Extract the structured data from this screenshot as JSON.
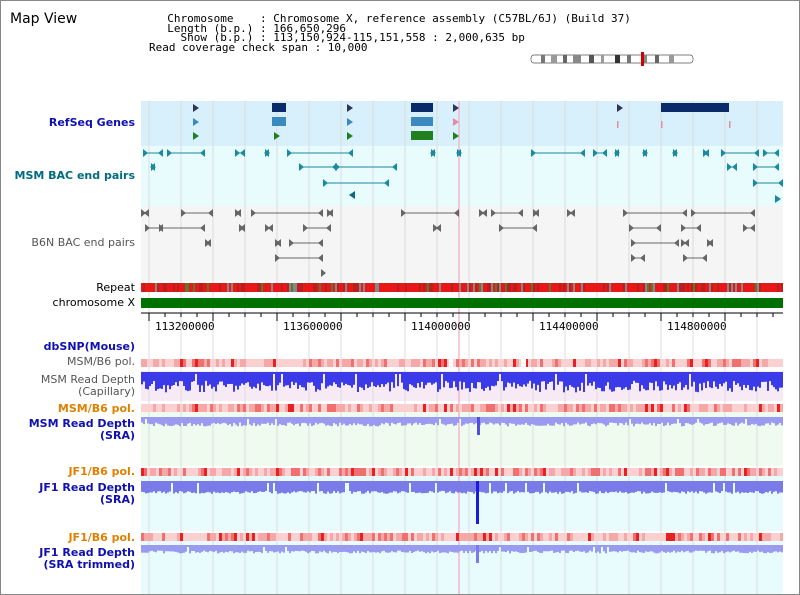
{
  "header": {
    "title": "Map View",
    "info_lines": [
      "  Chromosome    : Chromosome X, reference assembly (C57BL/6J) (Build 37)",
      "  Length (b.p.) : 166,650,296",
      "    Show (b.p.) : 113,150,924-115,151,558 : 2,000,635 bp",
      "Read coverage check span : 10,000"
    ]
  },
  "tracks": {
    "refseq": "RefSeq Genes",
    "msm_bac": "MSM BAC end pairs",
    "b6n_bac": "B6N BAC end pairs",
    "repeat": "Repeat",
    "chromosome": "chromosome X",
    "dbsnp": "dbSNP(Mouse)",
    "msm_b6_pol": "MSM/B6 pol.",
    "msm_depth_cap": "MSM Read Depth\n(Capillary)",
    "msm_b6_pol2": "MSM/B6 pol.",
    "msm_depth_sra": "MSM Read Depth\n(SRA)",
    "jf1_b6_pol": "JF1/B6 pol.",
    "jf1_depth_sra": "JF1 Read Depth\n(SRA)",
    "jf1_b6_pol2": "JF1/B6 pol.",
    "jf1_depth_trim": "JF1 Read Depth\n(SRA trimmed)"
  },
  "ruler": {
    "ticks": [
      "113200000",
      "113600000",
      "114000000",
      "114400000",
      "114800000"
    ]
  },
  "colors": {
    "refseq_bg": "#d8f0fb",
    "msm_bg": "#e8fbfd",
    "b6n_bg": "#f5f5f5",
    "chromosome": "#007000",
    "depth_blue": "#3a3ae8",
    "pol_red": "#f04040"
  }
}
